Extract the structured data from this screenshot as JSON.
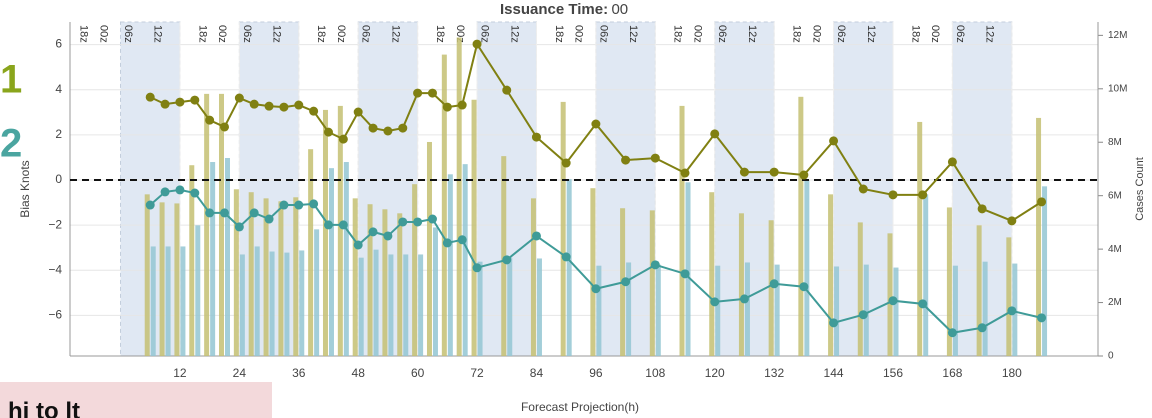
{
  "chart_data": {
    "type": "line",
    "title": "Issuance Time:",
    "title_value": "00",
    "ylabel": "Bias Knots",
    "y2label": "Cases Count",
    "xlabel": "Forecast Projection(h)",
    "footer_text": "hi to lt",
    "xlim": [
      -10.2,
      197.4
    ],
    "xticks": [
      12,
      24,
      36,
      48,
      60,
      72,
      84,
      96,
      108,
      120,
      132,
      144,
      156,
      168,
      180
    ],
    "ylim": [
      -7.8,
      7
    ],
    "yticks": [
      {
        "value": -6,
        "label": "−6"
      },
      {
        "value": -4,
        "label": "−4"
      },
      {
        "value": -2,
        "label": "−2"
      },
      0,
      2,
      4,
      6
    ],
    "y2lim": [
      0,
      12500000
    ],
    "y2ticks": [
      {
        "value": 0,
        "label": "0"
      },
      {
        "value": 2000000,
        "label": "2M"
      },
      {
        "value": 4000000,
        "label": "4M"
      },
      {
        "value": 6000000,
        "label": "6M"
      },
      {
        "value": 8000000,
        "label": "8M"
      },
      {
        "value": 10000000,
        "label": "10M"
      },
      {
        "value": 12000000,
        "label": "12M"
      }
    ],
    "grid": true,
    "hline": 0,
    "shaded_ranges": [
      [
        0,
        12
      ],
      [
        24,
        36
      ],
      [
        48,
        60
      ],
      [
        72,
        84
      ],
      [
        96,
        108
      ],
      [
        120,
        132
      ],
      [
        144,
        156
      ],
      [
        168,
        180
      ]
    ],
    "band_labels": [
      {
        "text": "18z",
        "x": -7.5
      },
      {
        "text": "00z",
        "x": -3.5
      },
      {
        "text": "06z",
        "x": 1.5
      },
      {
        "text": "12z",
        "x": 7.5
      },
      {
        "text": "18z",
        "x": 16.5
      },
      {
        "text": "00z",
        "x": 20.5
      },
      {
        "text": "06z",
        "x": 25.5
      },
      {
        "text": "12z",
        "x": 31.5
      },
      {
        "text": "18z",
        "x": 40.5
      },
      {
        "text": "00z",
        "x": 44.5
      },
      {
        "text": "06z",
        "x": 49.5
      },
      {
        "text": "12z",
        "x": 55.5
      },
      {
        "text": "18z",
        "x": 64.5
      },
      {
        "text": "00z",
        "x": 68.5
      },
      {
        "text": "06z",
        "x": 73.5
      },
      {
        "text": "12z",
        "x": 79.5
      },
      {
        "text": "18z",
        "x": 88.5
      },
      {
        "text": "00z",
        "x": 92.5
      },
      {
        "text": "06z",
        "x": 97.5
      },
      {
        "text": "12z",
        "x": 103.5
      },
      {
        "text": "18z",
        "x": 112.5
      },
      {
        "text": "00z",
        "x": 116.5
      },
      {
        "text": "06z",
        "x": 121.5
      },
      {
        "text": "12z",
        "x": 127.5
      },
      {
        "text": "18z",
        "x": 136.5
      },
      {
        "text": "00z",
        "x": 140.5
      },
      {
        "text": "06z",
        "x": 145.5
      },
      {
        "text": "12z",
        "x": 151.5
      },
      {
        "text": "18z",
        "x": 160.5
      },
      {
        "text": "00z",
        "x": 164.5
      },
      {
        "text": "06z",
        "x": 169.5
      },
      {
        "text": "12z",
        "x": 175.5
      }
    ],
    "x": [
      6,
      9,
      12,
      15,
      18,
      21,
      24,
      27,
      30,
      33,
      36,
      39,
      42,
      45,
      48,
      51,
      54,
      57,
      60,
      63,
      66,
      69,
      72,
      78,
      84,
      90,
      96,
      102,
      108,
      114,
      120,
      126,
      132,
      138,
      144,
      150,
      156,
      162,
      168,
      174,
      180,
      186
    ],
    "series": [
      {
        "type": "bar",
        "axis": "y2",
        "color": "#c4bf72",
        "values": [
          6050000,
          5750000,
          5710000,
          7140000,
          9810000,
          9810000,
          6240000,
          6130000,
          5900000,
          5790000,
          5940000,
          7740000,
          9210000,
          9360000,
          5900000,
          5680000,
          5490000,
          5340000,
          6430000,
          8010000,
          11280000,
          11920000,
          9590000,
          7480000,
          5900000,
          9510000,
          6280000,
          5530000,
          5450000,
          9360000,
          6130000,
          5340000,
          5080000,
          9700000,
          6050000,
          5000000,
          4590000,
          8760000,
          5560000,
          4890000,
          4440000,
          8910000
        ]
      },
      {
        "type": "bar",
        "axis": "y2",
        "color": "#93c6d2",
        "values": [
          4100000,
          4100000,
          4100000,
          4890000,
          7260000,
          7410000,
          3800000,
          4100000,
          3910000,
          3870000,
          3950000,
          4740000,
          7030000,
          7260000,
          3680000,
          3980000,
          3800000,
          3800000,
          3800000,
          4810000,
          6800000,
          7180000,
          3530000,
          3680000,
          3650000,
          6620000,
          3380000,
          3500000,
          3420000,
          6500000,
          3380000,
          3500000,
          3420000,
          6580000,
          3350000,
          3420000,
          3310000,
          6050000,
          3380000,
          3530000,
          3460000,
          6350000
        ]
      },
      {
        "type": "line",
        "name": "1",
        "color": "#808012",
        "values": [
          3.67,
          3.36,
          3.45,
          3.54,
          2.65,
          2.35,
          3.63,
          3.36,
          3.27,
          3.23,
          3.32,
          3.05,
          2.12,
          1.81,
          3.01,
          2.3,
          2.17,
          2.3,
          3.85,
          3.85,
          3.23,
          3.32,
          6.02,
          3.98,
          1.9,
          0.75,
          2.48,
          0.88,
          0.97,
          0.31,
          2.04,
          0.35,
          0.35,
          0.22,
          1.73,
          -0.4,
          -0.66,
          -0.66,
          0.8,
          -1.28,
          -1.81,
          -0.97
        ]
      },
      {
        "type": "line",
        "name": "2",
        "color": "#3f9b98",
        "values": [
          -1.11,
          -0.53,
          -0.44,
          -0.58,
          -1.46,
          -1.46,
          -2.08,
          -1.46,
          -1.73,
          -1.11,
          -1.11,
          -1.06,
          -1.99,
          -1.99,
          -2.88,
          -2.3,
          -2.48,
          -1.86,
          -1.86,
          -1.73,
          -2.79,
          -2.65,
          -3.89,
          -3.54,
          -2.48,
          -3.41,
          -4.82,
          -4.51,
          -3.76,
          -4.16,
          -5.4,
          -5.27,
          -4.6,
          -4.73,
          -6.33,
          -5.97,
          -5.35,
          -5.49,
          -6.77,
          -6.55,
          -5.8,
          -6.11
        ]
      }
    ]
  }
}
